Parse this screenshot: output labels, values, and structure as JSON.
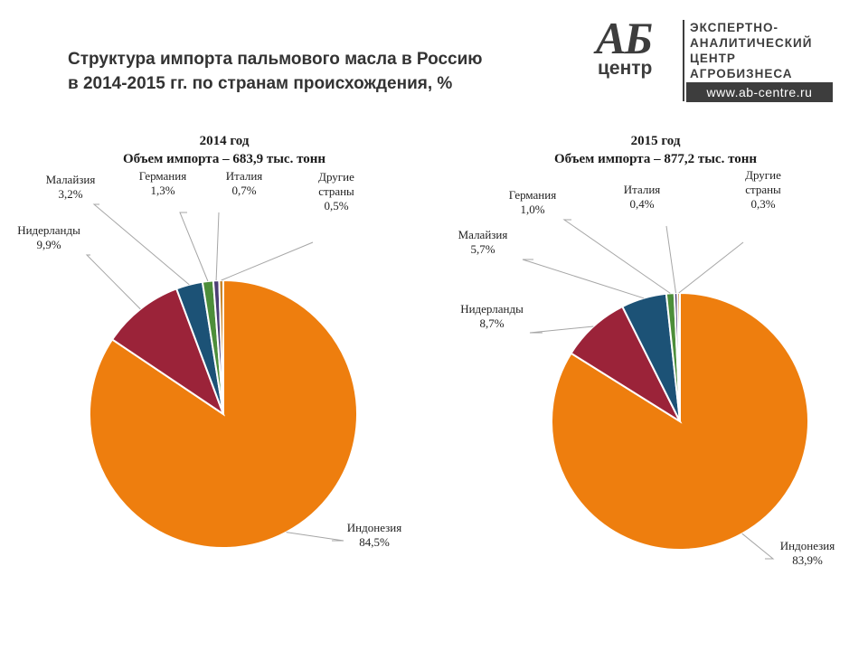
{
  "title": {
    "line1": "Структура импорта пальмового масла в Россию",
    "line2": "в 2014-2015 гг. по странам происхождения, %"
  },
  "logo": {
    "mark_top": "АБ",
    "mark_bottom": "центр",
    "text_lines": [
      "ЭКСПЕРТНО-",
      "АНАЛИТИЧЕСКИЙ",
      "ЦЕНТР",
      "АГРОБИЗНЕСА"
    ],
    "url": "www.ab-centre.ru"
  },
  "colors": {
    "Индонезия": "#EE7E0E",
    "Нидерланды": "#9B2339",
    "Малайзия": "#1C5276",
    "Германия": "#4D8E3A",
    "Италия": "#4B3E74",
    "Другие страны": "#C9862A",
    "leader": "#A6A6A6"
  },
  "chart_data": [
    {
      "type": "pie",
      "title": "2014 год",
      "subtitle": "Объем импорта – 683,9 тыс. тонн",
      "slices": [
        {
          "label": [
            "Индонезия"
          ],
          "value": 84.5,
          "value_text": "84,5%"
        },
        {
          "label": [
            "Нидерланды"
          ],
          "value": 9.9,
          "value_text": "9,9%"
        },
        {
          "label": [
            "Малайзия"
          ],
          "value": 3.2,
          "value_text": "3,2%"
        },
        {
          "label": [
            "Германия"
          ],
          "value": 1.3,
          "value_text": "1,3%"
        },
        {
          "label": [
            "Италия"
          ],
          "value": 0.7,
          "value_text": "0,7%"
        },
        {
          "label": [
            "Другие",
            "страны"
          ],
          "value": 0.5,
          "value_text": "0,5%"
        }
      ]
    },
    {
      "type": "pie",
      "title": "2015 год",
      "subtitle": "Объем импорта – 877,2 тыс. тонн",
      "slices": [
        {
          "label": [
            "Индонезия"
          ],
          "value": 83.9,
          "value_text": "83,9%"
        },
        {
          "label": [
            "Нидерланды"
          ],
          "value": 8.7,
          "value_text": "8,7%"
        },
        {
          "label": [
            "Малайзия"
          ],
          "value": 5.7,
          "value_text": "5,7%"
        },
        {
          "label": [
            "Германия"
          ],
          "value": 1.0,
          "value_text": "1,0%"
        },
        {
          "label": [
            "Италия"
          ],
          "value": 0.4,
          "value_text": "0,4%"
        },
        {
          "label": [
            "Другие",
            "страны"
          ],
          "value": 0.3,
          "value_text": "0,3%"
        }
      ]
    }
  ]
}
